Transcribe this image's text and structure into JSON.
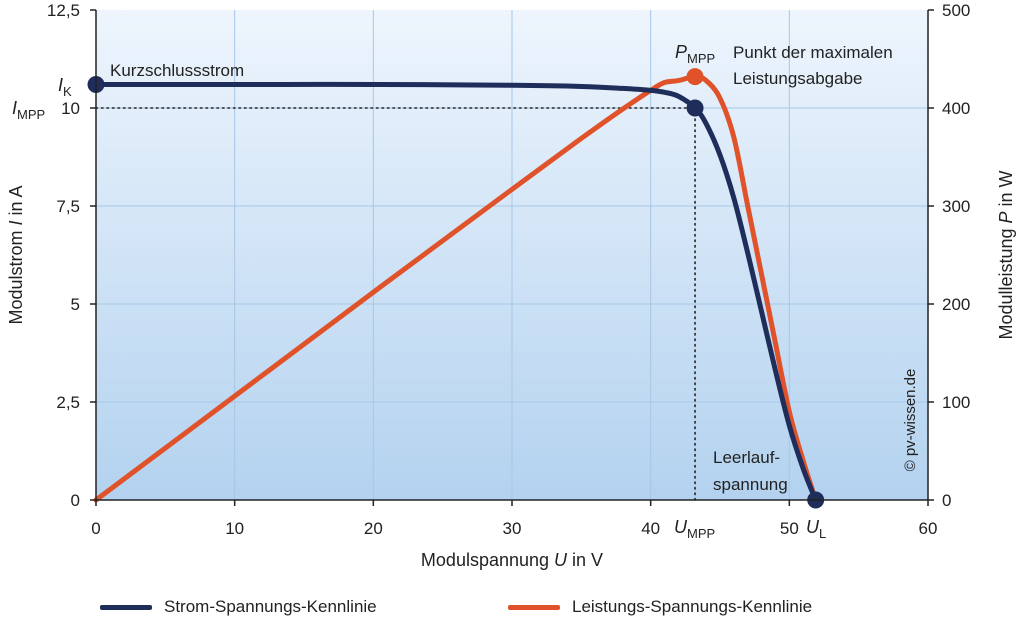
{
  "chart_data": {
    "type": "line",
    "title": "",
    "xlabel": {
      "pre": "Modulspannung ",
      "var": "U",
      "post": " in V"
    },
    "ylabel_left": {
      "pre": "Modulstrom ",
      "var": "I",
      "post": " in A"
    },
    "ylabel_right": {
      "pre": "Modulleistung ",
      "var": "P",
      "post": " in W"
    },
    "xlim": [
      0,
      60
    ],
    "ylim_left": [
      0,
      12.5
    ],
    "ylim_right": [
      0,
      500
    ],
    "x_ticks": [
      0,
      10,
      20,
      30,
      40,
      50,
      60
    ],
    "x_tick_labels": [
      "0",
      "10",
      "20",
      "30",
      "40",
      "50",
      "60"
    ],
    "y_left_ticks": [
      0,
      2.5,
      5,
      7.5,
      10,
      12.5
    ],
    "y_left_tick_labels": [
      "0",
      "2,5",
      "5",
      "7,5",
      "10",
      "12,5"
    ],
    "y_right_ticks": [
      0,
      100,
      200,
      300,
      400,
      500
    ],
    "y_right_tick_labels": [
      "0",
      "100",
      "200",
      "300",
      "400",
      "500"
    ],
    "grid": true,
    "series": [
      {
        "name": "Strom-Spannungs-Kennlinie",
        "axis": "left",
        "color": "#1f2d5a",
        "x": [
          0,
          10,
          20,
          30,
          35,
          38,
          40,
          41,
          42,
          43.2,
          44,
          45,
          46,
          47,
          48,
          49,
          50,
          51,
          51.9
        ],
        "y": [
          10.6,
          10.6,
          10.6,
          10.58,
          10.55,
          10.5,
          10.45,
          10.4,
          10.3,
          10.0,
          9.6,
          8.8,
          7.7,
          6.3,
          4.8,
          3.3,
          1.9,
          0.8,
          0
        ]
      },
      {
        "name": "Leistungs-Spannungs-Kennlinie",
        "axis": "right",
        "color": "#e0522a",
        "x": [
          0,
          10,
          20,
          30,
          35,
          38,
          40,
          41,
          42,
          43.2,
          44,
          45,
          46,
          47,
          48,
          49,
          50,
          51,
          51.9
        ],
        "y": [
          0,
          106,
          212,
          317,
          369,
          399,
          418,
          426,
          428,
          432,
          428,
          410,
          370,
          300,
          230,
          160,
          90,
          40,
          0
        ]
      }
    ],
    "reference": {
      "x": 43.2,
      "y_left": 10.0
    },
    "points": [
      {
        "id": "ik",
        "axis": "left",
        "x": 0,
        "y": 10.6,
        "color": "#1f2d5a"
      },
      {
        "id": "impp",
        "axis": "left",
        "x": 43.2,
        "y": 10.0,
        "color": "#1f2d5a"
      },
      {
        "id": "pmpp",
        "axis": "right",
        "x": 43.2,
        "y": 432,
        "color": "#e0522a"
      },
      {
        "id": "ul",
        "axis": "left",
        "x": 51.9,
        "y": 0,
        "color": "#1f2d5a"
      }
    ],
    "markers": {
      "ik": {
        "main": "I",
        "sub": "K"
      },
      "impp": {
        "main": "I",
        "sub": "MPP"
      },
      "pmpp": {
        "main": "P",
        "sub": "MPP"
      },
      "umpp": {
        "main": "U",
        "sub": "MPP"
      },
      "ul": {
        "main": "U",
        "sub": "L"
      }
    },
    "annotations": {
      "kurzschluss": "Kurzschlussstrom",
      "mpp_line1": "Punkt der maximalen",
      "mpp_line2": "Leistungsabgabe",
      "leerlauf_line1": "Leerlauf-",
      "leerlauf_line2": "spannung"
    },
    "watermark": "© pv-wissen.de",
    "legend": [
      {
        "label": "Strom-Spannungs-Kennlinie",
        "color": "#1f2d5a"
      },
      {
        "label": "Leistungs-Spannungs-Kennlinie",
        "color": "#e0522a"
      }
    ]
  }
}
